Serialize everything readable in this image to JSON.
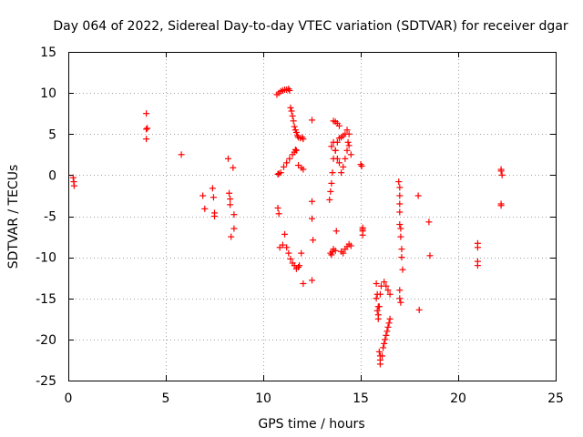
{
  "chart_data": {
    "type": "scatter",
    "title": "Day 064 of 2022, Sidereal Day-to-day VTEC variation (SDTVAR) for receiver dgar",
    "xlabel": "GPS time / hours",
    "ylabel": "SDTVAR / TECUs",
    "xlim": [
      0,
      25
    ],
    "ylim": [
      -25,
      15
    ],
    "xticks": [
      0,
      5,
      10,
      15,
      20,
      25
    ],
    "yticks": [
      -25,
      -20,
      -15,
      -10,
      -5,
      0,
      5,
      10,
      15
    ],
    "xtick_labels": [
      "0",
      "5",
      "10",
      "15",
      "20",
      "25"
    ],
    "ytick_labels": [
      "-25",
      "-20",
      "-15",
      "-10",
      "-5",
      "0",
      "5",
      "10",
      "15"
    ],
    "grid": true,
    "marker": "+",
    "color": "#ff0000",
    "series": [
      {
        "name": "SDTVAR",
        "x": [
          0.25,
          0.28,
          0.3,
          4.0,
          4.05,
          4.0,
          4.0,
          5.8,
          6.9,
          7.0,
          7.4,
          7.45,
          7.5,
          7.5,
          8.2,
          8.25,
          8.3,
          8.3,
          8.35,
          8.45,
          8.5,
          8.5,
          10.7,
          10.8,
          10.9,
          11.0,
          11.1,
          11.2,
          11.3,
          11.35,
          11.4,
          11.45,
          11.5,
          11.55,
          11.6,
          11.65,
          11.7,
          11.75,
          11.8,
          11.9,
          12.0,
          12.05,
          10.75,
          10.8,
          10.9,
          11.05,
          11.2,
          11.35,
          11.5,
          11.6,
          11.65,
          11.7,
          11.8,
          11.95,
          12.05,
          10.75,
          10.8,
          10.85,
          11.0,
          11.1,
          11.2,
          11.3,
          11.4,
          11.5,
          11.6,
          11.7,
          11.8,
          11.85,
          11.95,
          12.05,
          12.5,
          12.5,
          12.5,
          12.55,
          12.5,
          13.4,
          13.45,
          13.5,
          13.55,
          13.6,
          13.7,
          13.8,
          13.9,
          14.0,
          14.1,
          14.2,
          14.3,
          14.4,
          13.45,
          13.5,
          13.55,
          13.6,
          13.7,
          13.75,
          13.6,
          13.7,
          13.8,
          13.9,
          14.0,
          14.1,
          14.2,
          14.3,
          14.35,
          14.4,
          14.5,
          13.5,
          13.6,
          13.7,
          13.8,
          13.9,
          14.0,
          14.1,
          14.2,
          14.3,
          14.4,
          14.5,
          15.0,
          15.05,
          15.1,
          15.1,
          15.1,
          15.1,
          15.8,
          15.85,
          15.9,
          15.9,
          15.95,
          16.0,
          16.0,
          16.0,
          15.8,
          15.85,
          15.9,
          15.95,
          16.0,
          16.05,
          16.1,
          16.15,
          16.2,
          16.25,
          16.3,
          16.35,
          16.4,
          16.45,
          16.5,
          16.2,
          16.3,
          16.4,
          16.5,
          16.95,
          17.0,
          17.0,
          17.0,
          17.0,
          17.0,
          17.05,
          17.05,
          17.1,
          17.1,
          17.15,
          17.0,
          17.0,
          17.05,
          17.95,
          18.0,
          18.5,
          18.55,
          21.0,
          21.0,
          21.0,
          21.0,
          22.2,
          22.2,
          22.25,
          22.2,
          22.2
        ],
        "y": [
          -0.3,
          -0.8,
          -1.3,
          7.5,
          5.7,
          4.4,
          5.6,
          2.5,
          -2.5,
          -4.1,
          -1.6,
          -2.7,
          -4.6,
          -5.0,
          2.0,
          -2.2,
          -2.9,
          -3.6,
          -7.5,
          0.9,
          -4.8,
          -6.5,
          9.8,
          10.0,
          10.2,
          10.3,
          10.4,
          10.4,
          10.5,
          10.3,
          8.2,
          7.8,
          7.2,
          6.6,
          5.9,
          5.5,
          5.2,
          4.8,
          4.6,
          4.5,
          4.6,
          4.4,
          0.1,
          0.2,
          0.3,
          1.0,
          1.5,
          2.0,
          2.5,
          2.8,
          3.1,
          3.0,
          1.2,
          0.9,
          0.7,
          -4.0,
          -4.7,
          -8.8,
          -8.5,
          -7.2,
          -8.8,
          -9.5,
          -10.2,
          -10.7,
          -11.0,
          -11.4,
          -11.2,
          -11.0,
          -9.5,
          -13.2,
          6.7,
          -3.2,
          -5.3,
          -7.9,
          -12.8,
          -3.0,
          -2.0,
          -1.0,
          0.3,
          2.0,
          3.0,
          4.0,
          4.5,
          4.6,
          4.8,
          5.0,
          5.5,
          5.0,
          -9.5,
          -9.7,
          -9.3,
          -9.0,
          -9.2,
          -6.8,
          6.6,
          6.5,
          6.3,
          6.0,
          0.3,
          1.0,
          2.0,
          3.0,
          4.0,
          3.6,
          2.5,
          3.5,
          4.0,
          3.0,
          2.0,
          1.5,
          -9.3,
          -9.5,
          -9.0,
          -8.7,
          -8.4,
          -8.6,
          1.3,
          1.1,
          -6.4,
          -6.8,
          -7.3,
          -6.6,
          -13.2,
          -14.5,
          -16.0,
          -17.5,
          -21.5,
          -22.0,
          -22.5,
          -23.0,
          -15.0,
          -16.5,
          -17.0,
          -16.0,
          -14.5,
          -13.5,
          -22.0,
          -21.0,
          -20.5,
          -20.0,
          -19.5,
          -19.0,
          -18.5,
          -18.0,
          -17.5,
          -13.0,
          -13.5,
          -14.0,
          -14.5,
          -0.8,
          -1.5,
          -2.5,
          -3.5,
          -4.5,
          -6.0,
          -6.5,
          -7.5,
          -9.0,
          -10.0,
          -11.5,
          -14.0,
          -15.0,
          -15.5,
          -2.5,
          -16.4,
          -5.7,
          -9.8,
          -8.3,
          -8.8,
          -10.5,
          -11.0,
          0.7,
          0.5,
          0.0,
          -3.5,
          -3.7
        ]
      }
    ]
  }
}
